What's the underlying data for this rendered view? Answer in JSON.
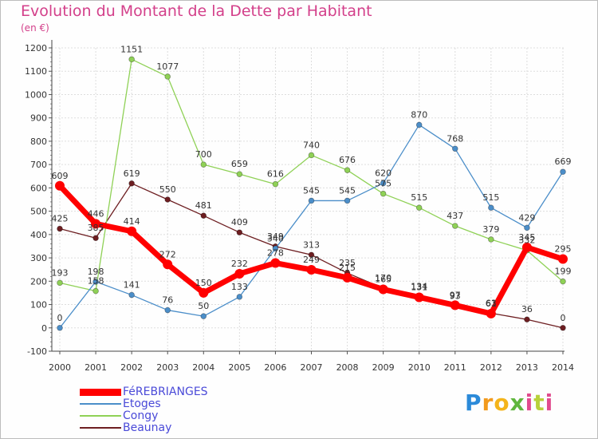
{
  "chart_data": {
    "type": "line",
    "title": "Evolution du Montant de la Dette par Habitant",
    "subtitle": "(en €)",
    "xlabel": "",
    "ylabel": "",
    "x": [
      "2000",
      "2001",
      "2002",
      "2003",
      "2004",
      "2005",
      "2006",
      "2007",
      "2008",
      "2009",
      "2010",
      "2011",
      "2012",
      "2013",
      "2014"
    ],
    "ylim": [
      -100,
      1200
    ],
    "yticks": [
      "-100",
      "0",
      "100",
      "200",
      "300",
      "400",
      "500",
      "600",
      "700",
      "800",
      "900",
      "1000",
      "1100",
      "1200"
    ],
    "grid": true,
    "legend_position": "bottom-left",
    "series": [
      {
        "name": "FéREBRIANGES",
        "color": "#ff0000",
        "values": [
          609,
          446,
          414,
          272,
          150,
          232,
          278,
          249,
          215,
          165,
          131,
          97,
          61,
          345,
          295
        ]
      },
      {
        "name": "Etoges",
        "color": "#4b8ec9",
        "values": [
          0,
          198,
          141,
          76,
          50,
          133,
          340,
          545,
          545,
          620,
          870,
          768,
          515,
          429,
          669
        ]
      },
      {
        "name": "Congy",
        "color": "#8fd156",
        "values": [
          193,
          158,
          1151,
          1077,
          700,
          659,
          616,
          740,
          676,
          575,
          515,
          437,
          379,
          332,
          199
        ]
      },
      {
        "name": "Beaunay",
        "color": "#6d1e21",
        "values": [
          425,
          385,
          619,
          550,
          481,
          409,
          349,
          313,
          235,
          170,
          134,
          93,
          63,
          36,
          0
        ]
      }
    ]
  },
  "logo": {
    "p": "P",
    "r": "r",
    "o": "o",
    "x": "x",
    "i": "i",
    "t": "t",
    "i2": "i"
  }
}
